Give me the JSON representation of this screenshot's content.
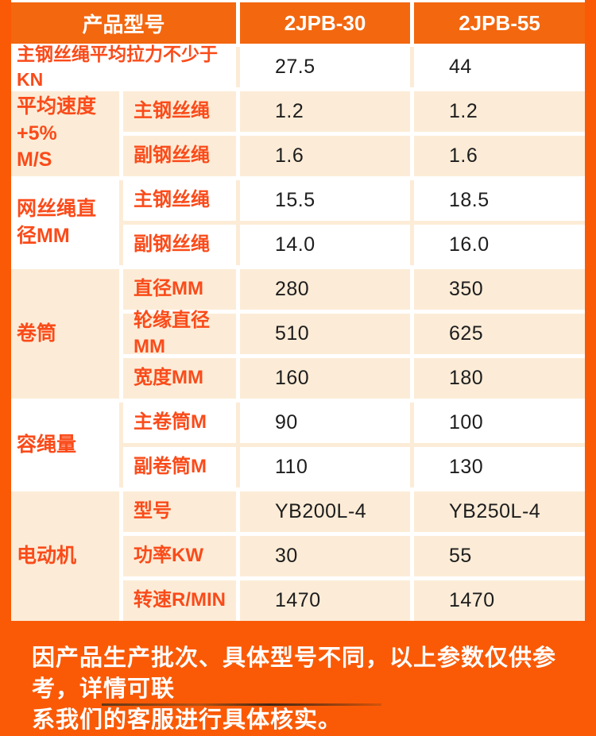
{
  "colors": {
    "page_bg": "#fa5a06",
    "header_bg": "#f3670f",
    "cream": "#fcecd7",
    "label_color": "#fa4b1a"
  },
  "table": {
    "header": {
      "model_label": "产品型号",
      "model_a": "2JPB-30",
      "model_b": "2JPB-55"
    },
    "sections": [
      {
        "label": "主钢丝绳平均拉力不少于KN",
        "values": [
          "27.5",
          "44"
        ]
      },
      {
        "label": "平均速度+5%\nM/S",
        "rows": [
          {
            "sub": "主钢丝绳",
            "values": [
              "1.2",
              "1.2"
            ]
          },
          {
            "sub": "副钢丝绳",
            "values": [
              "1.6",
              "1.6"
            ]
          }
        ]
      },
      {
        "label": "网丝绳直\n径MM",
        "rows": [
          {
            "sub": "主钢丝绳",
            "values": [
              "15.5",
              "18.5"
            ]
          },
          {
            "sub": "副钢丝绳",
            "values": [
              "14.0",
              "16.0"
            ]
          }
        ]
      },
      {
        "label": "卷筒",
        "rows": [
          {
            "sub": "直径MM",
            "values": [
              "280",
              "350"
            ]
          },
          {
            "sub": "轮缘直径MM",
            "values": [
              "510",
              "625"
            ]
          },
          {
            "sub": "宽度MM",
            "values": [
              "160",
              "180"
            ]
          }
        ]
      },
      {
        "label": "容绳量",
        "rows": [
          {
            "sub": "主卷筒M",
            "values": [
              "90",
              "100"
            ]
          },
          {
            "sub": "副卷筒M",
            "values": [
              "110",
              "130"
            ]
          }
        ]
      },
      {
        "label": "电动机",
        "rows": [
          {
            "sub": "型号",
            "values": [
              "YB200L-4",
              "YB250L-4"
            ]
          },
          {
            "sub": "功率KW",
            "values": [
              "30",
              "55"
            ]
          },
          {
            "sub": "转速R/MIN",
            "values": [
              "1470",
              "1470"
            ]
          }
        ]
      }
    ]
  },
  "footer": {
    "note": "因产品生产批次、具体型号不同，以上参数仅供参考，详情可联\n系我们的客服进行具体核实。"
  }
}
